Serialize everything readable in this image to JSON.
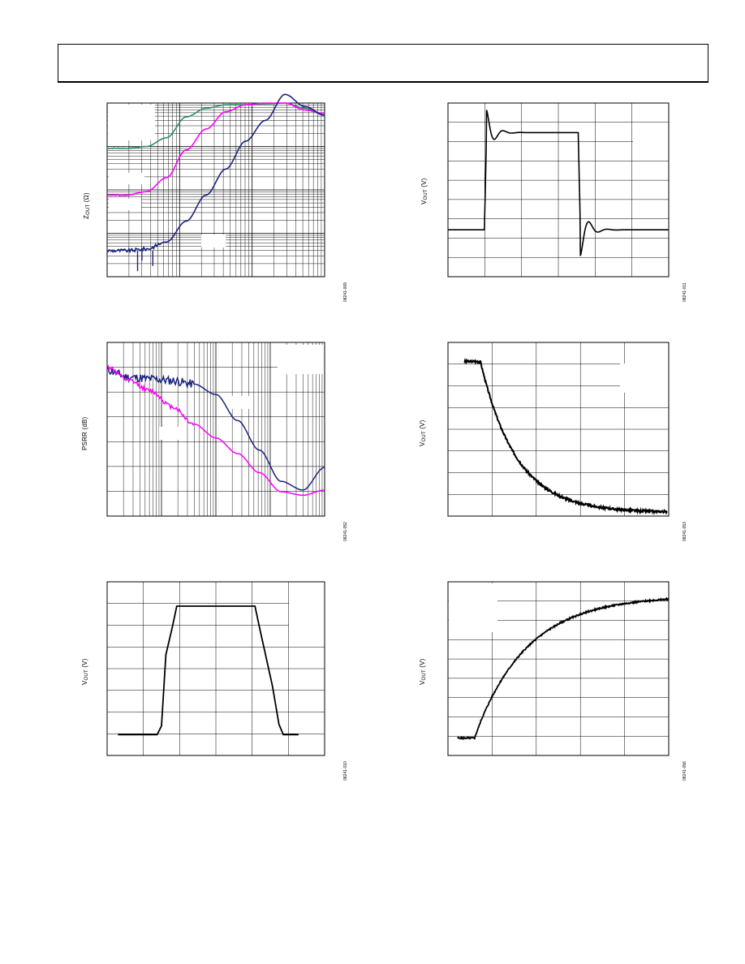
{
  "page": {
    "header": ""
  },
  "figures": [
    {
      "id": "zout",
      "ylabel_main": "Z",
      "ylabel_sub": "OUT",
      "ylabel_tail": " (Ω)",
      "fignum": "08241-009"
    },
    {
      "id": "vout1",
      "ylabel_main": "V",
      "ylabel_sub": "OUT",
      "ylabel_tail": " (V)",
      "fignum": "08241-011"
    },
    {
      "id": "psrr",
      "ylabel_main": "PSRR (dB)",
      "ylabel_sub": "",
      "ylabel_tail": "",
      "fignum": "08241-052"
    },
    {
      "id": "vout2",
      "ylabel_main": "V",
      "ylabel_sub": "OUT",
      "ylabel_tail": " (V)",
      "fignum": "08241-053"
    },
    {
      "id": "vout3",
      "ylabel_main": "V",
      "ylabel_sub": "OUT",
      "ylabel_tail": " (V)",
      "fignum": "08241-010"
    },
    {
      "id": "vout4",
      "ylabel_main": "V",
      "ylabel_sub": "OUT",
      "ylabel_tail": " (V)",
      "fignum": "08241-056"
    }
  ],
  "chart_data": [
    {
      "type": "line",
      "scale": "log-log",
      "grid": true,
      "series": [
        {
          "color": "#2e8b6e",
          "values": [
            0.74,
            0.74,
            0.75,
            0.8,
            0.92,
            0.97,
            0.99,
            0.99,
            0.995,
            1.0,
            0.97,
            0.93
          ]
        },
        {
          "color": "#ff00ff",
          "values": [
            0.47,
            0.47,
            0.49,
            0.57,
            0.73,
            0.85,
            0.95,
            0.99,
            1.0,
            1.0,
            0.96,
            0.94
          ]
        },
        {
          "color": "#1a237e",
          "values": [
            0.15,
            0.15,
            0.16,
            0.2,
            0.32,
            0.47,
            0.62,
            0.78,
            0.9,
            1.05,
            0.98,
            0.93
          ]
        }
      ]
    },
    {
      "type": "line",
      "grid": true,
      "series": [
        {
          "color": "#000000",
          "shape": "pulse-ringing"
        }
      ]
    },
    {
      "type": "line",
      "scale": "log-x",
      "grid": true,
      "series": [
        {
          "color": "#1a237e",
          "values": [
            0.84,
            0.8,
            0.79,
            0.78,
            0.76,
            0.7,
            0.55,
            0.38,
            0.2,
            0.15,
            0.28
          ]
        },
        {
          "color": "#ff00ff",
          "values": [
            0.86,
            0.78,
            0.72,
            0.63,
            0.53,
            0.45,
            0.36,
            0.25,
            0.14,
            0.12,
            0.15
          ]
        }
      ]
    },
    {
      "type": "line",
      "grid": true,
      "series": [
        {
          "color": "#000000",
          "shape": "exp-decay"
        }
      ]
    },
    {
      "type": "line",
      "grid": true,
      "series": [
        {
          "color": "#000000",
          "shape": "trapezoid"
        }
      ]
    },
    {
      "type": "line",
      "grid": true,
      "series": [
        {
          "color": "#000000",
          "shape": "exp-rise"
        }
      ]
    }
  ]
}
